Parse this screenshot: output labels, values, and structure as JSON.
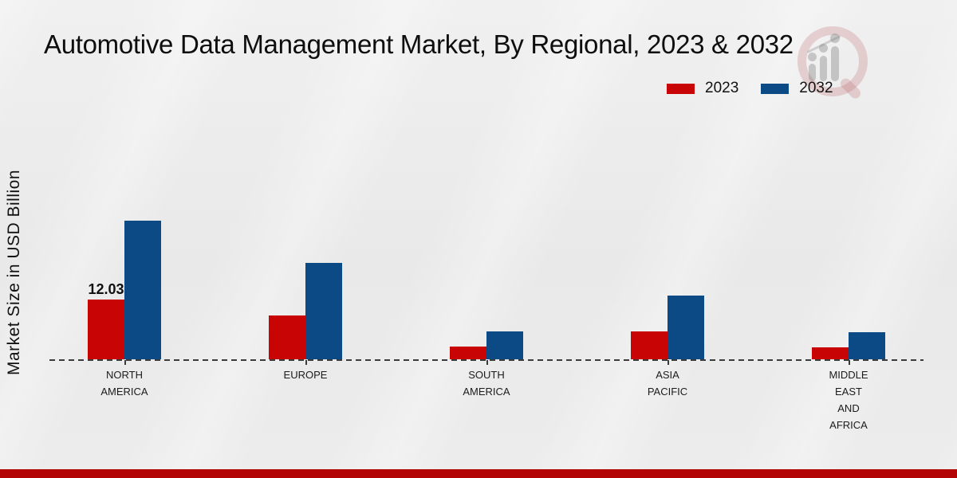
{
  "title": "Automotive Data Management Market, By Regional, 2023 & 2032",
  "ylabel": "Market Size in USD Billion",
  "legend": [
    {
      "label": "2023",
      "color": "#c90404"
    },
    {
      "label": "2032",
      "color": "#0c4a86"
    }
  ],
  "colors": {
    "series_2023": "#c90404",
    "series_2032": "#0c4a86",
    "footer_band": "#b20404",
    "baseline": "#3b3b3b",
    "background": "#ebebeb"
  },
  "watermark": {
    "icon": "magnifier-bar-chart-logo"
  },
  "chart_data": {
    "type": "bar",
    "title": "Automotive Data Management Market, By Regional, 2023 & 2032",
    "xlabel": "",
    "ylabel": "Market Size in USD Billion",
    "categories": [
      "NORTH AMERICA",
      "EUROPE",
      "SOUTH AMERICA",
      "ASIA PACIFIC",
      "MIDDLE EAST AND AFRICA"
    ],
    "categories_display": [
      [
        "NORTH",
        "AMERICA"
      ],
      [
        "EUROPE"
      ],
      [
        "SOUTH",
        "AMERICA"
      ],
      [
        "ASIA",
        "PACIFIC"
      ],
      [
        "MIDDLE",
        "EAST",
        "AND",
        "AFRICA"
      ]
    ],
    "series": [
      {
        "name": "2023",
        "color": "#c90404",
        "values": [
          12.03,
          8.8,
          2.5,
          5.6,
          2.4
        ]
      },
      {
        "name": "2032",
        "color": "#0c4a86",
        "values": [
          27.9,
          19.4,
          5.7,
          12.9,
          5.5
        ]
      }
    ],
    "data_labels": [
      {
        "series_index": 0,
        "category_index": 0,
        "text": "12.03"
      }
    ],
    "ylim": [
      0,
      30
    ],
    "grid": false,
    "y_axis_ticks": "none",
    "legend_position": "top-right",
    "baseline_style": "dashed"
  }
}
